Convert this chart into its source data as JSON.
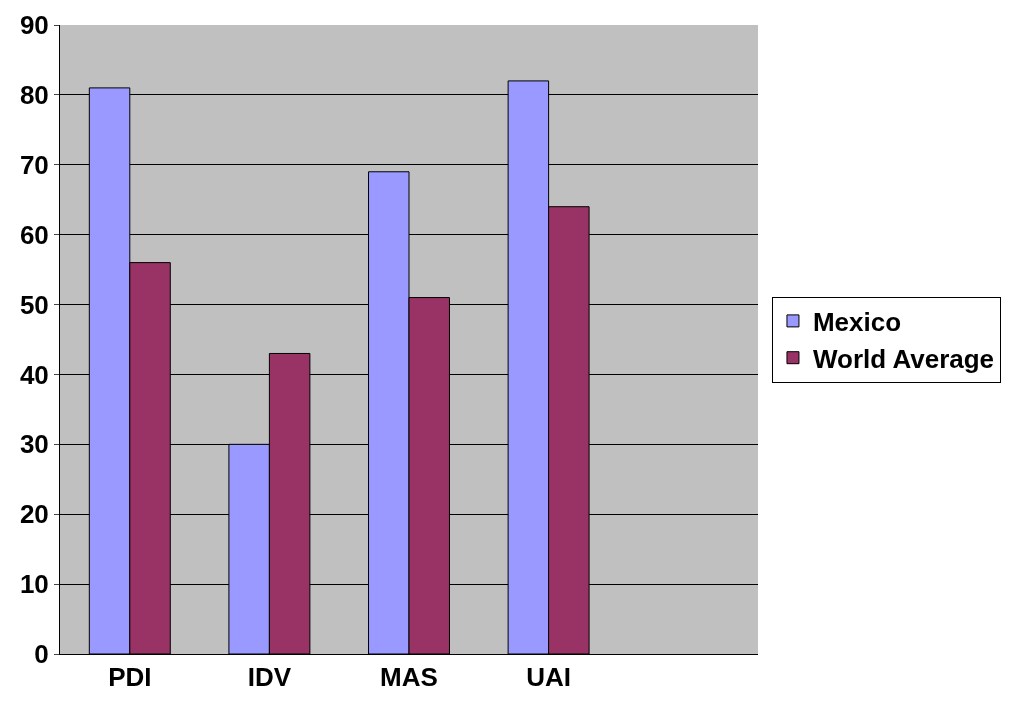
{
  "chart_data": {
    "type": "bar",
    "categories": [
      "PDI",
      "IDV",
      "MAS",
      "UAI",
      null
    ],
    "series": [
      {
        "name": "Mexico",
        "color": "#9999ff",
        "values": [
          81,
          30,
          69,
          82,
          null
        ]
      },
      {
        "name": "World Average",
        "color": "#993366",
        "values": [
          56,
          43,
          51,
          64,
          null
        ]
      }
    ],
    "ylim": [
      0,
      90
    ],
    "yticks": [
      0,
      10,
      20,
      30,
      40,
      50,
      60,
      70,
      80,
      90
    ],
    "grid": "y",
    "legend": "right"
  }
}
